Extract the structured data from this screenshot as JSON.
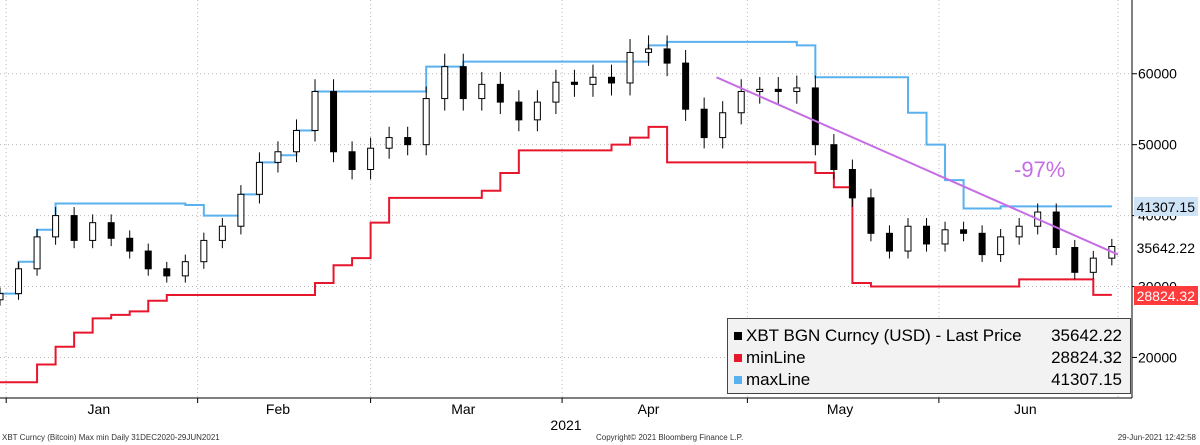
{
  "chart_data": {
    "type": "line",
    "title": "",
    "xlabel": "2021",
    "ylabel": "",
    "x_ticks": [
      "Jan",
      "Feb",
      "Mar",
      "Apr",
      "May",
      "Jun"
    ],
    "ylim": [
      14000,
      68000
    ],
    "y_ticks": [
      20000,
      30000,
      40000,
      50000,
      60000
    ],
    "grid": true,
    "legend_position": "bottom-right",
    "candles_dates": [
      "2020-12-31",
      "2021-01-03",
      "2021-01-06",
      "2021-01-09",
      "2021-01-12",
      "2021-01-15",
      "2021-01-18",
      "2021-01-21",
      "2021-01-24",
      "2021-01-27",
      "2021-01-30",
      "2021-02-02",
      "2021-02-05",
      "2021-02-08",
      "2021-02-11",
      "2021-02-14",
      "2021-02-17",
      "2021-02-20",
      "2021-02-23",
      "2021-02-26",
      "2021-03-01",
      "2021-03-04",
      "2021-03-07",
      "2021-03-10",
      "2021-03-13",
      "2021-03-16",
      "2021-03-19",
      "2021-03-22",
      "2021-03-25",
      "2021-03-28",
      "2021-03-31",
      "2021-04-03",
      "2021-04-06",
      "2021-04-09",
      "2021-04-12",
      "2021-04-15",
      "2021-04-18",
      "2021-04-21",
      "2021-04-24",
      "2021-04-27",
      "2021-04-30",
      "2021-05-03",
      "2021-05-06",
      "2021-05-09",
      "2021-05-12",
      "2021-05-15",
      "2021-05-18",
      "2021-05-21",
      "2021-05-24",
      "2021-05-27",
      "2021-05-30",
      "2021-06-02",
      "2021-06-05",
      "2021-06-08",
      "2021-06-11",
      "2021-06-14",
      "2021-06-17",
      "2021-06-20",
      "2021-06-23",
      "2021-06-26",
      "2021-06-29"
    ],
    "series": [
      {
        "name": "XBT BGN Curncy (USD) - Last Price",
        "color": "#000000",
        "values": [
          29000,
          32500,
          37000,
          40000,
          36500,
          39000,
          36800,
          35000,
          32500,
          31500,
          33500,
          36500,
          38500,
          43000,
          47500,
          49000,
          52000,
          57500,
          49000,
          46500,
          49500,
          51000,
          50000,
          56500,
          61000,
          56500,
          58500,
          56000,
          53500,
          56000,
          58800,
          58500,
          59500,
          58700,
          63000,
          63500,
          61500,
          55000,
          51000,
          54500,
          57500,
          57800,
          57500,
          58000,
          50000,
          46500,
          42500,
          37500,
          35000,
          38500,
          36000,
          38000,
          37500,
          34500,
          37000,
          38500,
          40500,
          35500,
          32000,
          34000,
          35642.22
        ]
      },
      {
        "name": "minLine",
        "color": "#e8162c",
        "values": [
          16500,
          16500,
          19000,
          21500,
          23500,
          25500,
          26000,
          26500,
          28000,
          28800,
          28800,
          28800,
          28800,
          28800,
          28800,
          28800,
          28800,
          30500,
          33000,
          34000,
          39000,
          42500,
          42500,
          42500,
          42500,
          42500,
          43500,
          46000,
          49200,
          49200,
          49200,
          49200,
          49200,
          50000,
          51000,
          52500,
          47500,
          47500,
          47500,
          47500,
          47500,
          47500,
          47500,
          47500,
          46000,
          44000,
          30500,
          30000,
          30000,
          30000,
          30000,
          30000,
          30000,
          30000,
          30000,
          31000,
          31000,
          31000,
          31000,
          28824.32,
          28824.32
        ]
      },
      {
        "name": "maxLine",
        "color": "#5ab1ef",
        "values": [
          29000,
          33500,
          38000,
          41700,
          41700,
          41700,
          41700,
          41700,
          41700,
          41700,
          41500,
          40000,
          40000,
          43000,
          47500,
          48500,
          52000,
          57500,
          57500,
          57500,
          57500,
          57500,
          57500,
          61000,
          61000,
          61700,
          61700,
          61700,
          61700,
          61700,
          61700,
          61700,
          61700,
          61700,
          61700,
          64000,
          64500,
          64500,
          64500,
          64500,
          64500,
          64500,
          64500,
          64000,
          59500,
          59500,
          59500,
          59500,
          59500,
          54500,
          50000,
          45000,
          41000,
          41000,
          41307.15,
          41307.15,
          41307.15,
          41307.15,
          41307.15,
          41307.15,
          41307.15
        ]
      }
    ],
    "annotations": [
      {
        "text": "-97%",
        "color": "#c66de5",
        "trendline": {
          "from": [
            "2021-04-26",
            59500
          ],
          "to": [
            "2021-06-30",
            34500
          ]
        }
      }
    ],
    "last_values": [
      {
        "label": "41307.15",
        "bg": "#cfe3f7",
        "color": "#000000",
        "value": 41307.15
      },
      {
        "label": "35642.22",
        "bg": "#ffffff",
        "color": "#000000",
        "value": 35642.22
      },
      {
        "label": "28824.32",
        "bg": "#ff3b3b",
        "color": "#ffffff",
        "value": 28824.32
      }
    ]
  },
  "legend": [
    {
      "name": "XBT BGN Curncy (USD) - Last Price",
      "value": "35642.22",
      "color": "#000000"
    },
    {
      "name": "minLine",
      "value": "28824.32",
      "color": "#e8162c"
    },
    {
      "name": "maxLine",
      "value": "41307.15",
      "color": "#5ab1ef"
    }
  ],
  "footer": {
    "left": "XBT Curncy (Bitcoin) Max min  Daily 31DEC2020-29JUN2021",
    "center": "Copyright© 2021 Bloomberg Finance L.P.",
    "right": "29-Jun-2021 12:42:58"
  }
}
